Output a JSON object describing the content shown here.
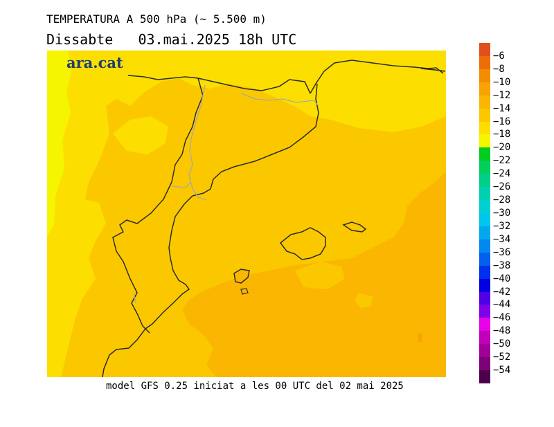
{
  "header": {
    "title": "TEMPERATURA A 500 hPa (~ 5.500 m)",
    "subtitle": "Dissabte   03.mai.2025 18h UTC"
  },
  "brand": {
    "logo_text": "ara.cat",
    "logo_color": "#1b3f73"
  },
  "footer": {
    "text": "model GFS 0.25 iniciat a les 00 UTC del 02 mai 2025"
  },
  "legend": {
    "labels": [
      "-6",
      "-8",
      "-10",
      "-12",
      "-14",
      "-16",
      "-18",
      "-20",
      "-22",
      "-24",
      "-26",
      "-28",
      "-30",
      "-32",
      "-34",
      "-36",
      "-38",
      "-40",
      "-42",
      "-44",
      "-46",
      "-48",
      "-50",
      "-52",
      "-54"
    ],
    "colors": [
      "#e0501b",
      "#ec6e0a",
      "#f48c00",
      "#f7a300",
      "#fab600",
      "#fbc800",
      "#fcdf00",
      "#f6f500",
      "#00cd1f",
      "#00d05a",
      "#00cf88",
      "#00d0b2",
      "#00d0d4",
      "#00c6ee",
      "#00a9ee",
      "#0089ee",
      "#0061ee",
      "#0030ee",
      "#0000e0",
      "#5000e6",
      "#8000e8",
      "#e800e8",
      "#c000b8",
      "#a00098",
      "#7c0078",
      "#4c004a"
    ]
  },
  "map": {
    "field_colors": {
      "minus14_16": "#fbc800",
      "minus12_14": "#fab600",
      "minus16_18": "#fcdf00",
      "minus18_20": "#f6f500",
      "coast_line": "#2b2b2b",
      "border_line": "#a8a8a8"
    }
  }
}
